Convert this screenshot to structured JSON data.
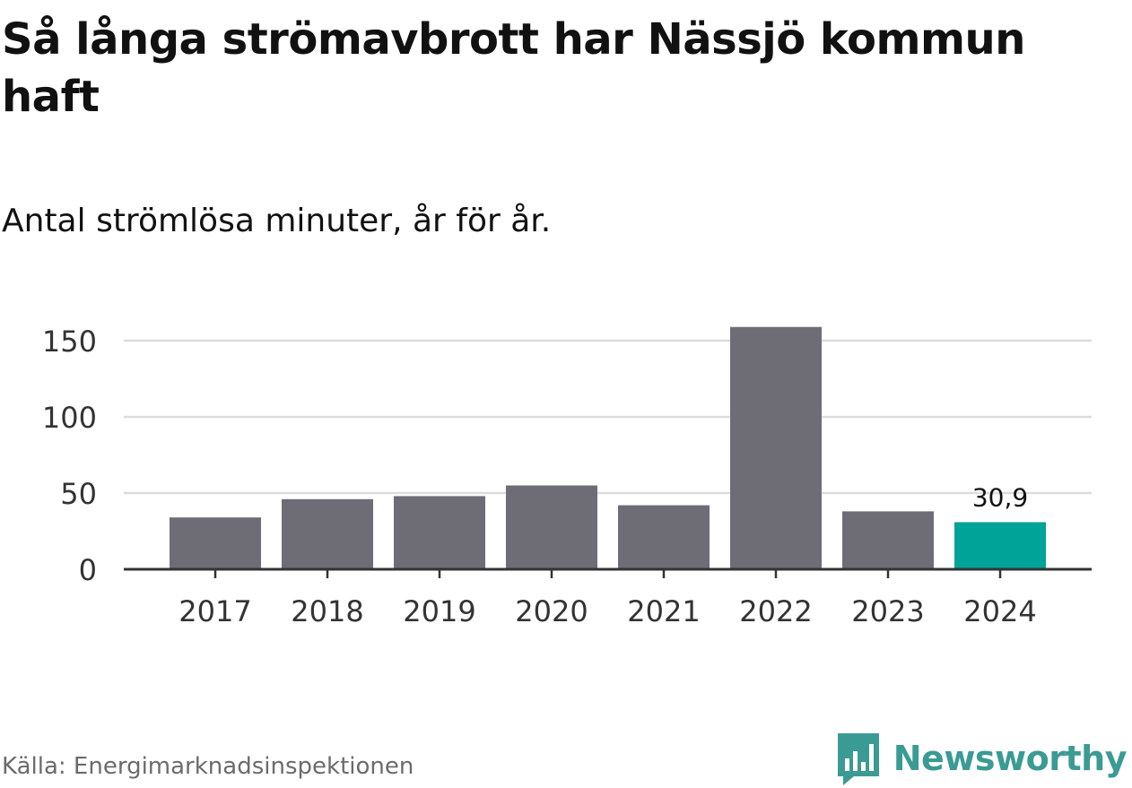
{
  "header": {
    "title": "Så långa strömavbrott har Nässjö kommun haft",
    "subtitle": "Antal strömlösa minuter, år för år."
  },
  "footer": {
    "source": "Källa: Energimarknadsinspektionen",
    "brand": "Newsworthy",
    "brand_icon": "bar-chart-speech-bubble-icon"
  },
  "colors": {
    "bar": "#6e6d75",
    "highlight": "#00a398",
    "grid": "#dcdcdc",
    "axis": "#333333",
    "brand": "#3a9b94"
  },
  "chart_data": {
    "type": "bar",
    "categories": [
      "2017",
      "2018",
      "2019",
      "2020",
      "2021",
      "2022",
      "2023",
      "2024"
    ],
    "values": [
      34,
      46,
      48,
      55,
      42,
      159,
      38,
      30.9
    ],
    "highlight_index": 7,
    "data_labels": [
      {
        "index": 7,
        "text": "30,9"
      }
    ],
    "yticks": [
      0,
      50,
      100,
      150
    ],
    "ylim": [
      0,
      160
    ],
    "grid": true,
    "xlabel": "",
    "ylabel": ""
  }
}
